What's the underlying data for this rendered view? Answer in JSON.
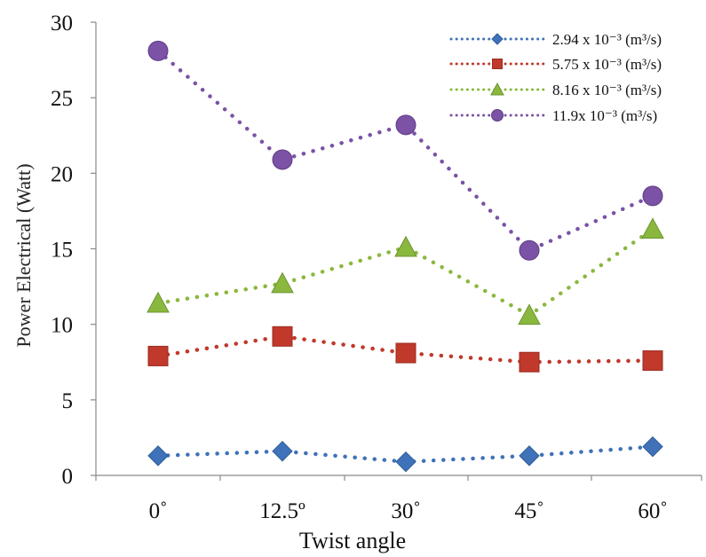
{
  "chart_data": {
    "type": "line",
    "title": "",
    "xlabel": "Twist angle",
    "ylabel": "Power Electrical (Watt)",
    "categories": [
      "0˚",
      "12.5º",
      "30˚",
      "45˚",
      "60˚"
    ],
    "ylim": [
      0,
      30
    ],
    "yticks": [
      0,
      5,
      10,
      15,
      20,
      25,
      30
    ],
    "grid": false,
    "legend_position": "top-right",
    "line_style": "dotted",
    "series": [
      {
        "name": "2.94 x 10⁻³ (m³/s)",
        "marker": "diamond",
        "color": "#3f72b8",
        "values": [
          1.3,
          1.6,
          0.9,
          1.3,
          1.9
        ]
      },
      {
        "name": "5.75 x 10⁻³ (m³/s)",
        "marker": "square",
        "color": "#c0392b",
        "values": [
          7.9,
          9.2,
          8.1,
          7.5,
          7.6
        ]
      },
      {
        "name": "8.16 x 10⁻³ (m³/s)",
        "marker": "triangle",
        "color": "#8ab83e",
        "values": [
          11.4,
          12.7,
          15.1,
          10.6,
          16.3
        ]
      },
      {
        "name": "11.9x 10⁻³ (m³/s)",
        "marker": "circle",
        "color": "#7b52a6",
        "values": [
          28.1,
          20.9,
          23.2,
          14.9,
          18.5
        ]
      }
    ]
  }
}
